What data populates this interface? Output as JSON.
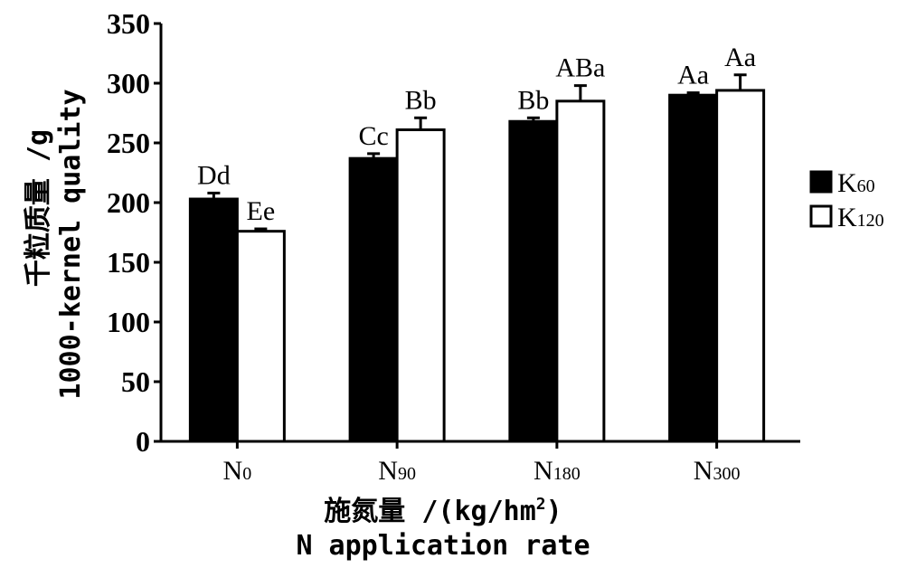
{
  "chart_data": {
    "type": "bar",
    "categories": [
      {
        "base": "N",
        "sub": "0"
      },
      {
        "base": "N",
        "sub": "90"
      },
      {
        "base": "N",
        "sub": "180"
      },
      {
        "base": "N",
        "sub": "300"
      }
    ],
    "series": [
      {
        "name": {
          "base": "K",
          "sub": "60"
        },
        "color": "#000000",
        "values": [
          203,
          237,
          268,
          290
        ],
        "errors": [
          5,
          4,
          3,
          2
        ],
        "labels": [
          "Dd",
          "Cc",
          "Bb",
          "Aa"
        ]
      },
      {
        "name": {
          "base": "K",
          "sub": "120"
        },
        "color": "#ffffff",
        "values": [
          176,
          261,
          285,
          294
        ],
        "errors": [
          2,
          10,
          13,
          13
        ],
        "labels": [
          "Ee",
          "Bb",
          "ABa",
          "Aa"
        ]
      }
    ],
    "ylim": [
      0,
      350
    ],
    "yticks": [
      0,
      50,
      100,
      150,
      200,
      250,
      300,
      350
    ],
    "ylabel_zh": "千粒质量 /g",
    "ylabel_en": "1000-kernel quality",
    "xlabel_zh": "施氮量 /(kg/hm",
    "xlabel_sup": "2",
    "xlabel_close": ")",
    "xlabel_en": "N application rate",
    "legend_position": "right",
    "grid": false
  }
}
